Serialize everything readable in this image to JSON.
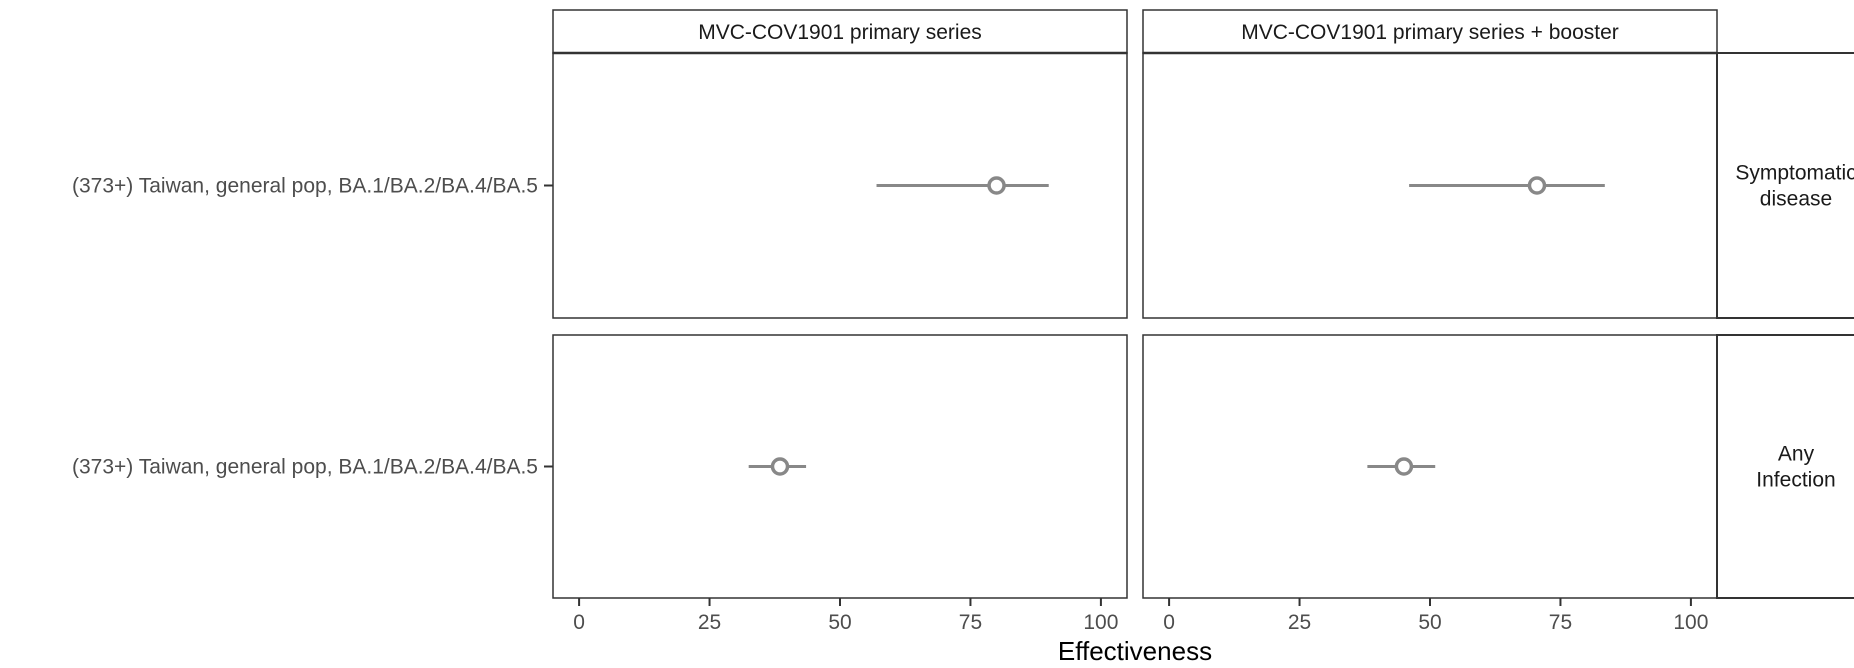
{
  "chart_data": {
    "type": "scatter",
    "style": "forest-plot with error bars, faceted 2x2",
    "xlabel": "Effectiveness",
    "xlim": [
      -5,
      105
    ],
    "xticks": [
      0,
      25,
      50,
      75,
      100
    ],
    "grid": true,
    "columns": [
      "MVC-COV1901 primary series",
      "MVC-COV1901 primary series + booster"
    ],
    "rows": [
      {
        "label": "Symptomatic disease",
        "lines": [
          "Symptomatic",
          "disease"
        ]
      },
      {
        "label": "Any Infection",
        "lines": [
          "Any",
          "Infection"
        ]
      }
    ],
    "ylabel_category": "(373+) Taiwan, general pop, BA.1/BA.2/BA.4/BA.5",
    "points": [
      {
        "row": 0,
        "col": 0,
        "estimate": 80,
        "lower": 57,
        "upper": 90
      },
      {
        "row": 0,
        "col": 1,
        "estimate": 70.5,
        "lower": 46,
        "upper": 83.5
      },
      {
        "row": 1,
        "col": 0,
        "estimate": 38.5,
        "lower": 32.5,
        "upper": 43.5
      },
      {
        "row": 1,
        "col": 1,
        "estimate": 45,
        "lower": 38,
        "upper": 51
      }
    ]
  }
}
